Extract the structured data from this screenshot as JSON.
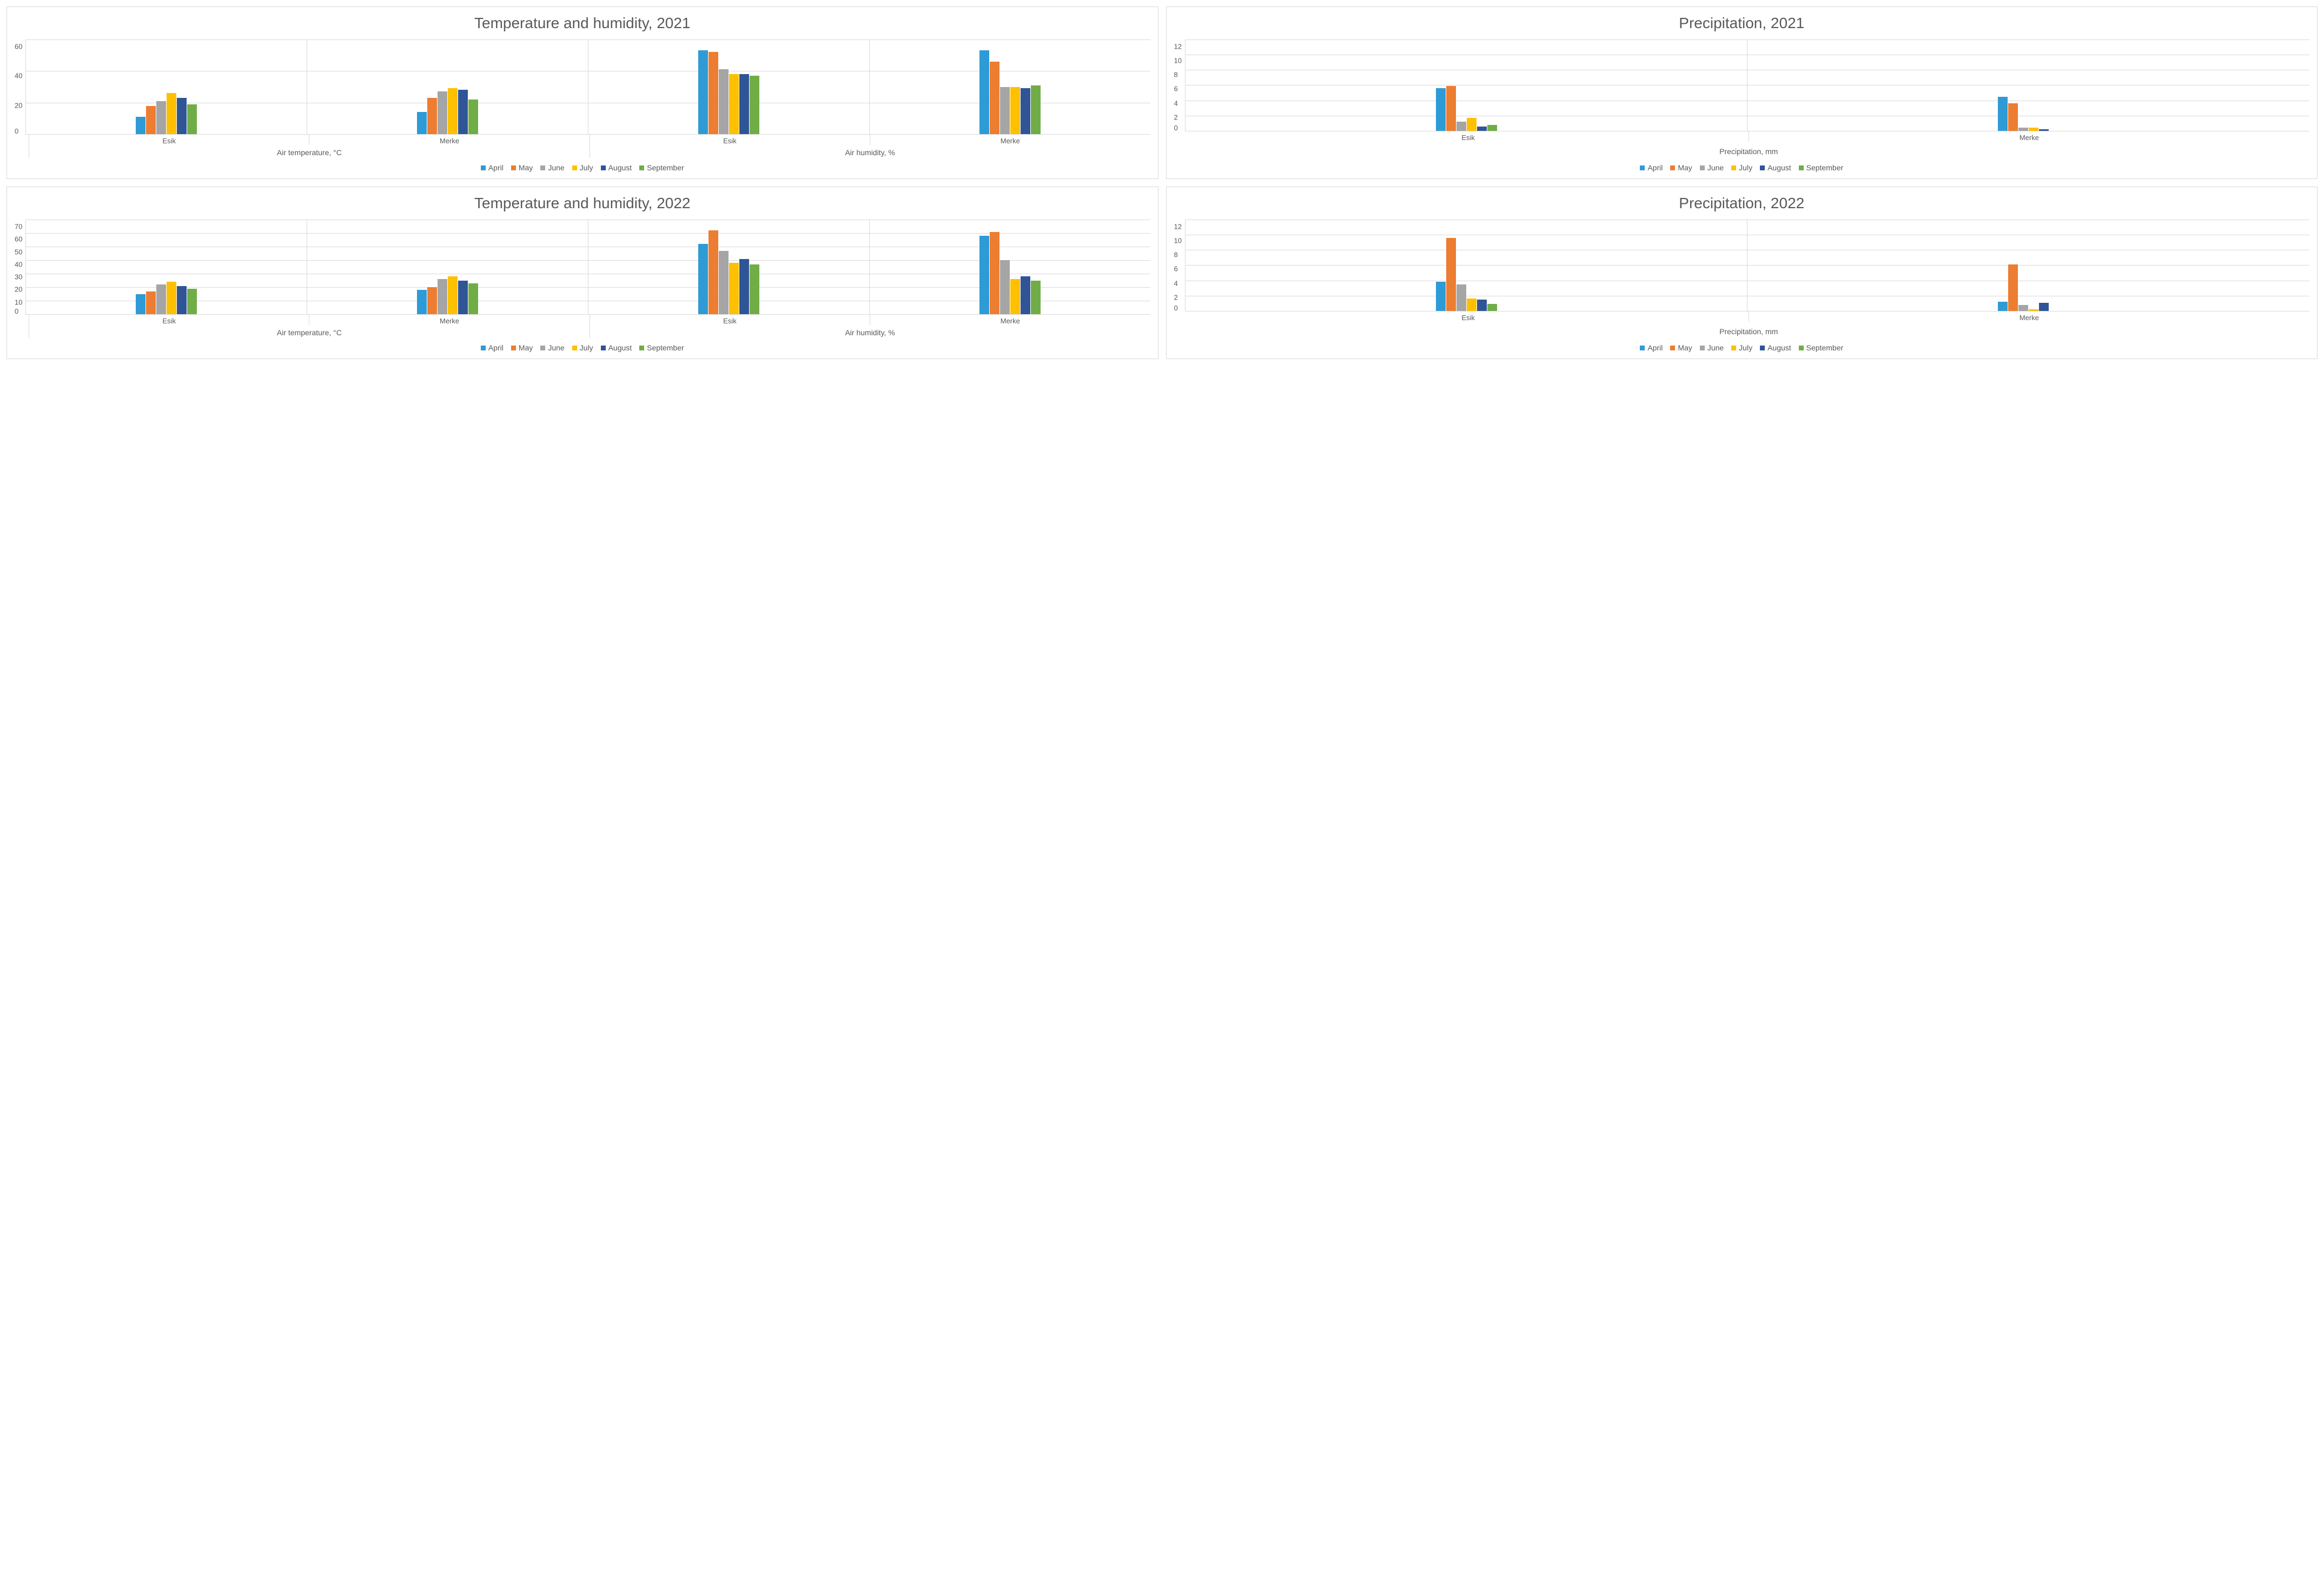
{
  "months": [
    "April",
    "May",
    "June",
    "July",
    "August",
    "September"
  ],
  "month_colors": [
    "#2e9bd6",
    "#ec7d31",
    "#a5a5a5",
    "#ffc000",
    "#2f5597",
    "#70ad47"
  ],
  "border_color": "#d9d9d9",
  "grid_color": "#d9d9d9",
  "text_color": "#595959",
  "background_color": "#ffffff",
  "title_fontsize": 28,
  "label_fontsize": 14,
  "tick_fontsize": 13,
  "panels": {
    "th2021": {
      "title": "Temperature and humidity, 2021",
      "type": "bar",
      "ylim": [
        0,
        60
      ],
      "ytick_step": 20,
      "categories": [
        "Air temperature, °C",
        "Air humidity, %"
      ],
      "groups": [
        {
          "cat": 0,
          "label": "Esik",
          "values": [
            11,
            18,
            21,
            26,
            23,
            19
          ]
        },
        {
          "cat": 0,
          "label": "Merke",
          "values": [
            14,
            23,
            27,
            29,
            28,
            22
          ]
        },
        {
          "cat": 1,
          "label": "Esik",
          "values": [
            53,
            52,
            41,
            38,
            38,
            37
          ]
        },
        {
          "cat": 1,
          "label": "Merke",
          "values": [
            53,
            46,
            30,
            30,
            29,
            31
          ]
        }
      ]
    },
    "pr2021": {
      "title": "Precipitation, 2021",
      "type": "bar",
      "ylim": [
        0,
        12
      ],
      "ytick_step": 2,
      "category_label": "Precipitation, mm",
      "groups": [
        {
          "label": "Esik",
          "values": [
            5.6,
            5.9,
            1.2,
            1.7,
            0.6,
            0.8
          ]
        },
        {
          "label": "Merke",
          "values": [
            4.5,
            3.6,
            0.4,
            0.4,
            0.2,
            0.0
          ]
        }
      ]
    },
    "th2022": {
      "title": "Temperature and humidity, 2022",
      "type": "bar",
      "ylim": [
        0,
        70
      ],
      "ytick_step": 10,
      "categories": [
        "Air temperature, °C",
        "Air humidity, %"
      ],
      "groups": [
        {
          "cat": 0,
          "label": "Esik",
          "values": [
            15,
            17,
            22,
            24,
            21,
            19
          ]
        },
        {
          "cat": 0,
          "label": "Merke",
          "values": [
            18,
            20,
            26,
            28,
            25,
            23
          ]
        },
        {
          "cat": 1,
          "label": "Esik",
          "values": [
            52,
            62,
            47,
            38,
            41,
            37
          ]
        },
        {
          "cat": 1,
          "label": "Merke",
          "values": [
            58,
            61,
            40,
            26,
            28,
            25
          ]
        }
      ]
    },
    "pr2022": {
      "title": "Precipitation, 2022",
      "type": "bar",
      "ylim": [
        0,
        12
      ],
      "ytick_step": 2,
      "category_label": "Precipitation, mm",
      "groups": [
        {
          "label": "Esik",
          "values": [
            3.8,
            9.6,
            3.5,
            1.6,
            1.5,
            0.9
          ]
        },
        {
          "label": "Merke",
          "values": [
            1.2,
            6.1,
            0.8,
            0.2,
            1.1,
            0.0
          ]
        }
      ]
    }
  }
}
